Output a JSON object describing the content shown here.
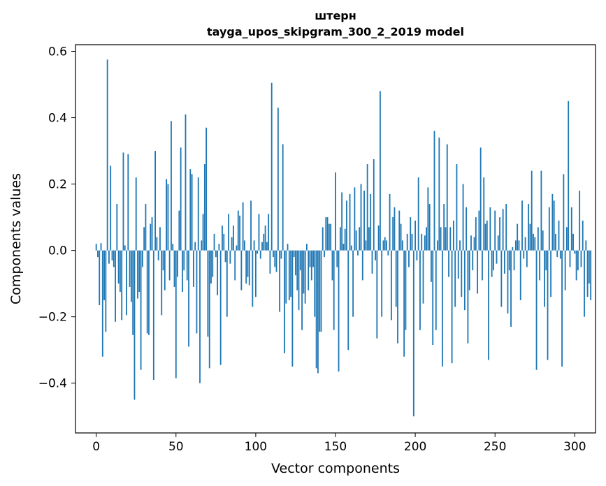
{
  "chart_data": {
    "type": "bar",
    "title_line1": "штерн",
    "title_line2": "tayga_upos_skipgram_300_2_2019 model",
    "xlabel": "Vector components",
    "ylabel": "Components values",
    "xlim": [
      -13,
      313
    ],
    "ylim": [
      -0.55,
      0.62
    ],
    "xticks": [
      0,
      50,
      100,
      150,
      200,
      250,
      300
    ],
    "yticks": [
      -0.4,
      -0.2,
      0.0,
      0.2,
      0.4,
      0.6
    ],
    "ytick_labels": [
      "−0.4",
      "−0.2",
      "0.0",
      "0.2",
      "0.4",
      "0.6"
    ],
    "grid": false,
    "bar_color": "#1f77b4",
    "values": [
      0.02,
      -0.02,
      -0.165,
      0.022,
      -0.32,
      -0.15,
      -0.245,
      0.575,
      -0.04,
      0.255,
      -0.03,
      -0.05,
      -0.215,
      0.14,
      -0.1,
      -0.125,
      -0.21,
      0.295,
      0.015,
      -0.195,
      0.29,
      -0.11,
      -0.155,
      -0.255,
      -0.45,
      0.22,
      -0.145,
      -0.125,
      -0.36,
      -0.05,
      0.07,
      0.14,
      -0.25,
      -0.255,
      0.08,
      0.1,
      -0.39,
      0.3,
      0.04,
      -0.03,
      0.07,
      -0.195,
      -0.06,
      -0.12,
      0.215,
      0.2,
      -0.09,
      0.39,
      0.02,
      -0.11,
      -0.385,
      -0.08,
      0.12,
      0.31,
      -0.125,
      -0.06,
      0.41,
      -0.09,
      -0.29,
      0.245,
      0.23,
      -0.11,
      0.025,
      -0.25,
      0.22,
      -0.4,
      0.03,
      0.11,
      0.26,
      0.37,
      -0.26,
      -0.355,
      -0.1,
      -0.08,
      0.05,
      -0.02,
      -0.135,
      0.02,
      -0.345,
      0.075,
      0.05,
      -0.035,
      -0.2,
      0.11,
      -0.04,
      0.04,
      0.075,
      -0.09,
      0.015,
      0.12,
      0.105,
      -0.12,
      0.145,
      0.03,
      -0.1,
      -0.08,
      -0.105,
      0.15,
      -0.17,
      0.03,
      -0.14,
      -0.01,
      0.11,
      -0.025,
      0.025,
      0.05,
      0.075,
      0.025,
      0.11,
      -0.07,
      0.505,
      -0.02,
      -0.05,
      -0.065,
      0.43,
      -0.185,
      -0.025,
      0.32,
      -0.31,
      -0.16,
      0.02,
      -0.15,
      -0.14,
      -0.35,
      -0.02,
      -0.075,
      -0.12,
      -0.18,
      -0.06,
      -0.24,
      -0.13,
      -0.16,
      0.02,
      -0.12,
      -0.05,
      -0.09,
      -0.05,
      -0.2,
      -0.355,
      -0.37,
      -0.245,
      -0.245,
      0.07,
      -0.02,
      0.1,
      0.1,
      0.08,
      0.08,
      -0.09,
      -0.24,
      0.235,
      -0.05,
      -0.365,
      0.07,
      0.175,
      0.02,
      0.065,
      0.15,
      -0.3,
      0.17,
      0.015,
      -0.2,
      0.19,
      0.06,
      -0.015,
      0.07,
      0.2,
      -0.09,
      0.18,
      0.03,
      0.26,
      0.07,
      0.17,
      -0.07,
      0.275,
      -0.03,
      -0.265,
      0.075,
      0.48,
      -0.2,
      0.03,
      0.04,
      0.03,
      -0.015,
      0.17,
      -0.21,
      0.1,
      0.13,
      -0.17,
      -0.28,
      0.12,
      0.08,
      0.03,
      -0.32,
      -0.24,
      0.05,
      -0.05,
      0.1,
      0.05,
      -0.5,
      0.09,
      -0.03,
      0.22,
      -0.24,
      0.05,
      -0.16,
      0.045,
      0.07,
      0.19,
      0.14,
      -0.095,
      -0.285,
      0.36,
      -0.24,
      0.03,
      0.34,
      0.07,
      -0.35,
      0.14,
      0.07,
      0.32,
      -0.08,
      0.07,
      -0.34,
      0.09,
      -0.17,
      0.26,
      -0.085,
      0.03,
      -0.14,
      0.2,
      -0.18,
      0.13,
      -0.28,
      -0.12,
      0.045,
      -0.06,
      0.04,
      0.1,
      -0.13,
      0.12,
      0.31,
      -0.09,
      0.22,
      0.08,
      0.09,
      -0.33,
      0.13,
      -0.08,
      -0.06,
      0.12,
      -0.04,
      0.045,
      0.1,
      -0.17,
      0.125,
      -0.07,
      0.14,
      -0.19,
      -0.06,
      -0.23,
      0.01,
      -0.06,
      0.03,
      0.08,
      0.03,
      -0.15,
      0.15,
      -0.025,
      0.04,
      -0.05,
      0.14,
      0.08,
      0.24,
      0.05,
      0.04,
      -0.36,
      0.07,
      -0.09,
      0.24,
      0.06,
      -0.17,
      -0.06,
      -0.33,
      0.13,
      -0.14,
      0.17,
      0.15,
      0.05,
      -0.02,
      0.09,
      -0.025,
      -0.35,
      0.23,
      -0.12,
      0.07,
      0.45,
      -0.05,
      0.13,
      0.05,
      -0.01,
      -0.09,
      -0.06,
      0.18,
      -0.05,
      0.09,
      -0.2,
      0.03,
      -0.14,
      -0.1,
      -0.15
    ]
  }
}
